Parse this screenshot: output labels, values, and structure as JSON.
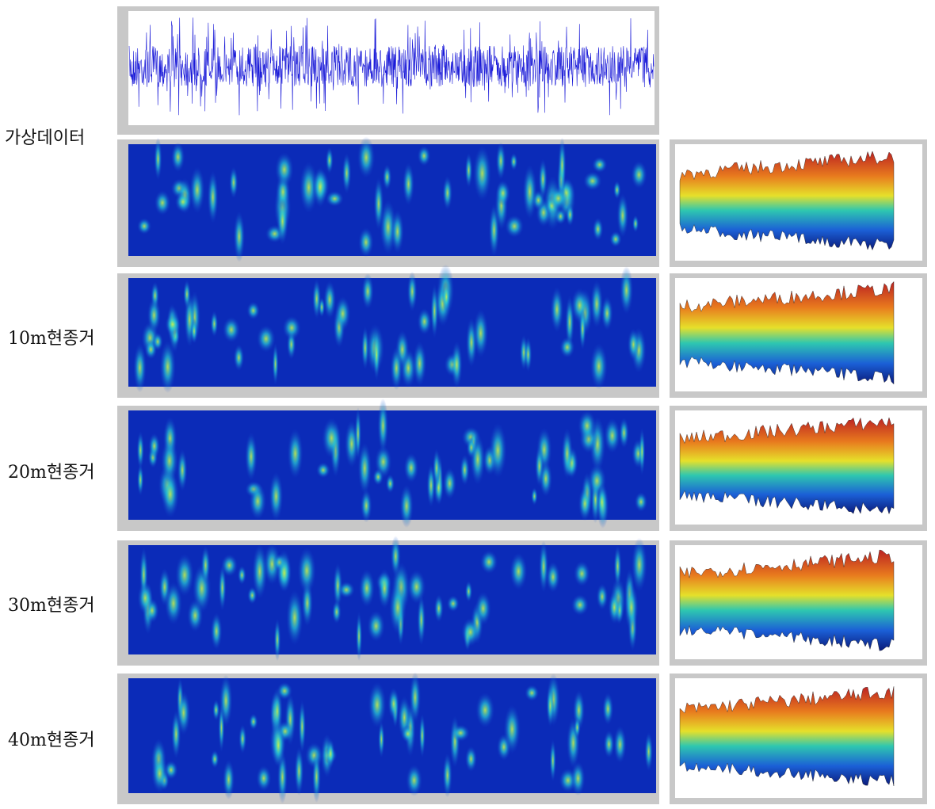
{
  "labels": [
    "가상데이터",
    "10m현종거",
    "20m현종거",
    "30m현종거",
    "40m현종거"
  ]
}
